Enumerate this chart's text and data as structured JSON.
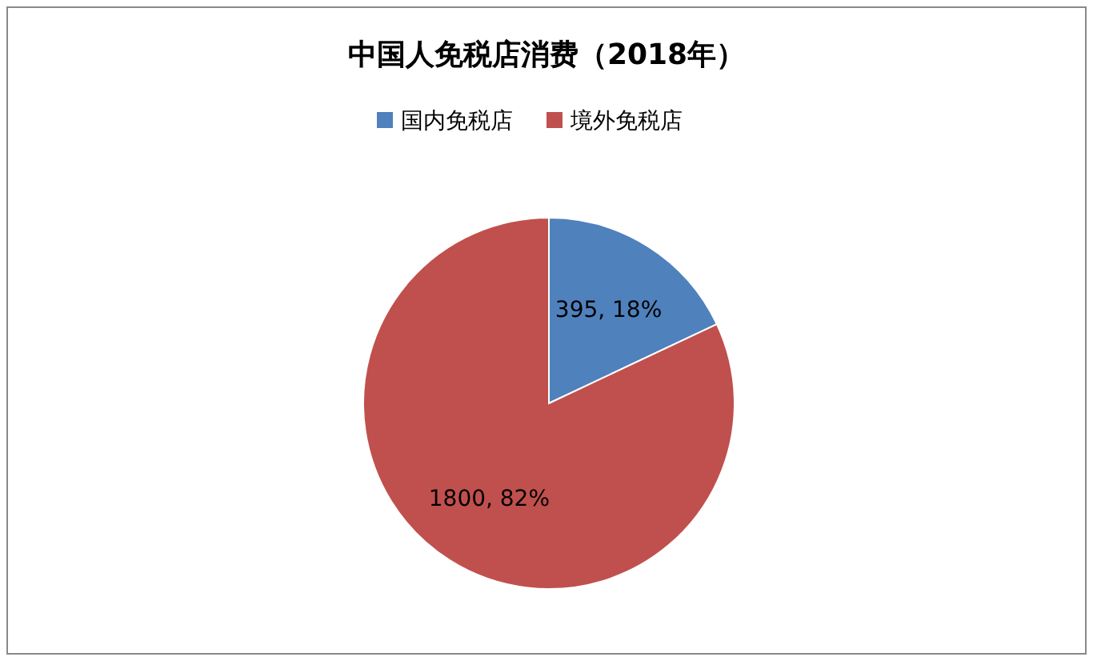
{
  "chart_data": {
    "type": "pie",
    "title": "中国人免税店消费（2018年）",
    "categories": [
      "国内免税店",
      "境外免税店"
    ],
    "values": [
      395,
      1800
    ],
    "colors": [
      "#4f81bd",
      "#c0504d"
    ],
    "value_labels": [
      "395, 18%",
      "1800, 82%"
    ],
    "legend": "top"
  }
}
